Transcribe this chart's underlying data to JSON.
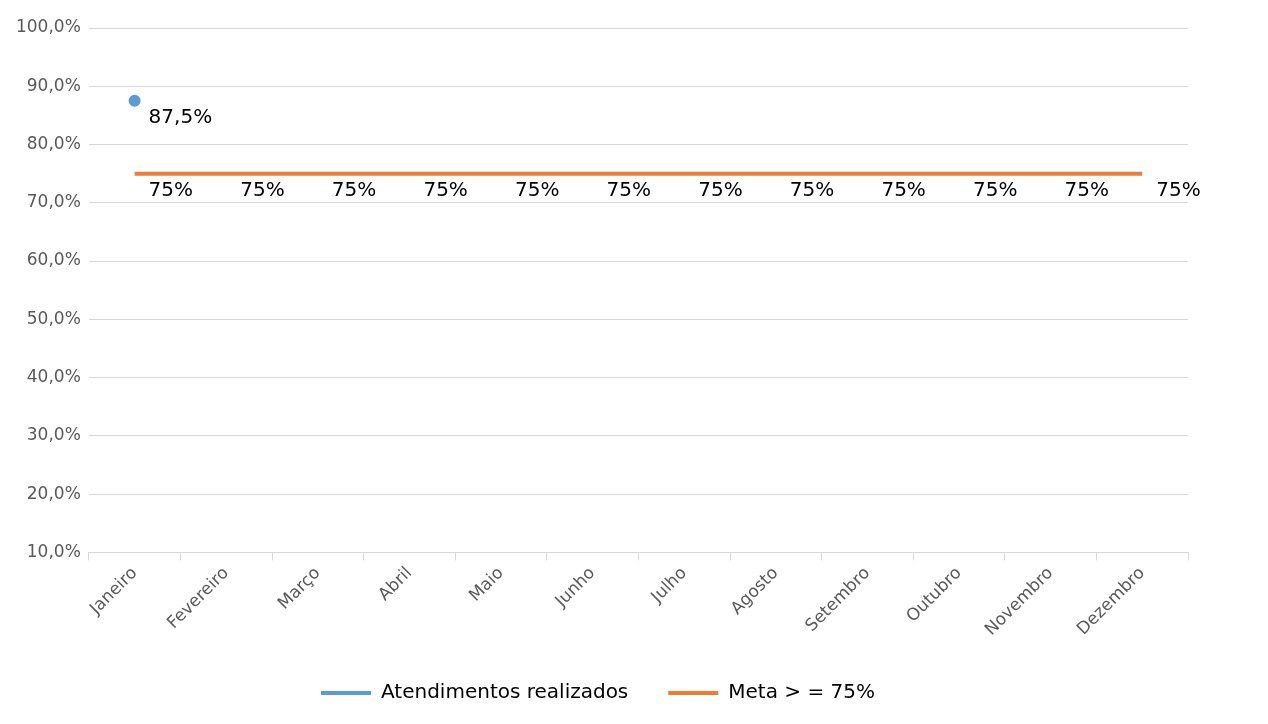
{
  "chart_data": {
    "type": "line",
    "categories": [
      "Janeiro",
      "Fevereiro",
      "Março",
      "Abril",
      "Maio",
      "Junho",
      "Julho",
      "Agosto",
      "Setembro",
      "Outubro",
      "Novembro",
      "Dezembro"
    ],
    "series": [
      {
        "name": "Atendimentos realizados",
        "color": "#5b9bd5",
        "marker": "circle",
        "values": [
          87.5,
          null,
          null,
          null,
          null,
          null,
          null,
          null,
          null,
          null,
          null,
          null
        ],
        "value_labels": [
          "87,5%",
          null,
          null,
          null,
          null,
          null,
          null,
          null,
          null,
          null,
          null,
          null
        ]
      },
      {
        "name": "Meta > = 75%",
        "color": "#ed7d31",
        "marker": "none",
        "values": [
          75,
          75,
          75,
          75,
          75,
          75,
          75,
          75,
          75,
          75,
          75,
          75
        ],
        "value_labels": [
          "75%",
          "75%",
          "75%",
          "75%",
          "75%",
          "75%",
          "75%",
          "75%",
          "75%",
          "75%",
          "75%",
          "75%"
        ]
      }
    ],
    "ylim": [
      10,
      100
    ],
    "yticks": [
      {
        "value": 10,
        "label": "10,0%"
      },
      {
        "value": 20,
        "label": "20,0%"
      },
      {
        "value": 30,
        "label": "30,0%"
      },
      {
        "value": 40,
        "label": "40,0%"
      },
      {
        "value": 50,
        "label": "50,0%"
      },
      {
        "value": 60,
        "label": "60,0%"
      },
      {
        "value": 70,
        "label": "70,0%"
      },
      {
        "value": 80,
        "label": "80,0%"
      },
      {
        "value": 90,
        "label": "90,0%"
      },
      {
        "value": 100,
        "label": "100,0%"
      }
    ],
    "grid": "y",
    "legend": "bottom",
    "line_style": "solid"
  }
}
